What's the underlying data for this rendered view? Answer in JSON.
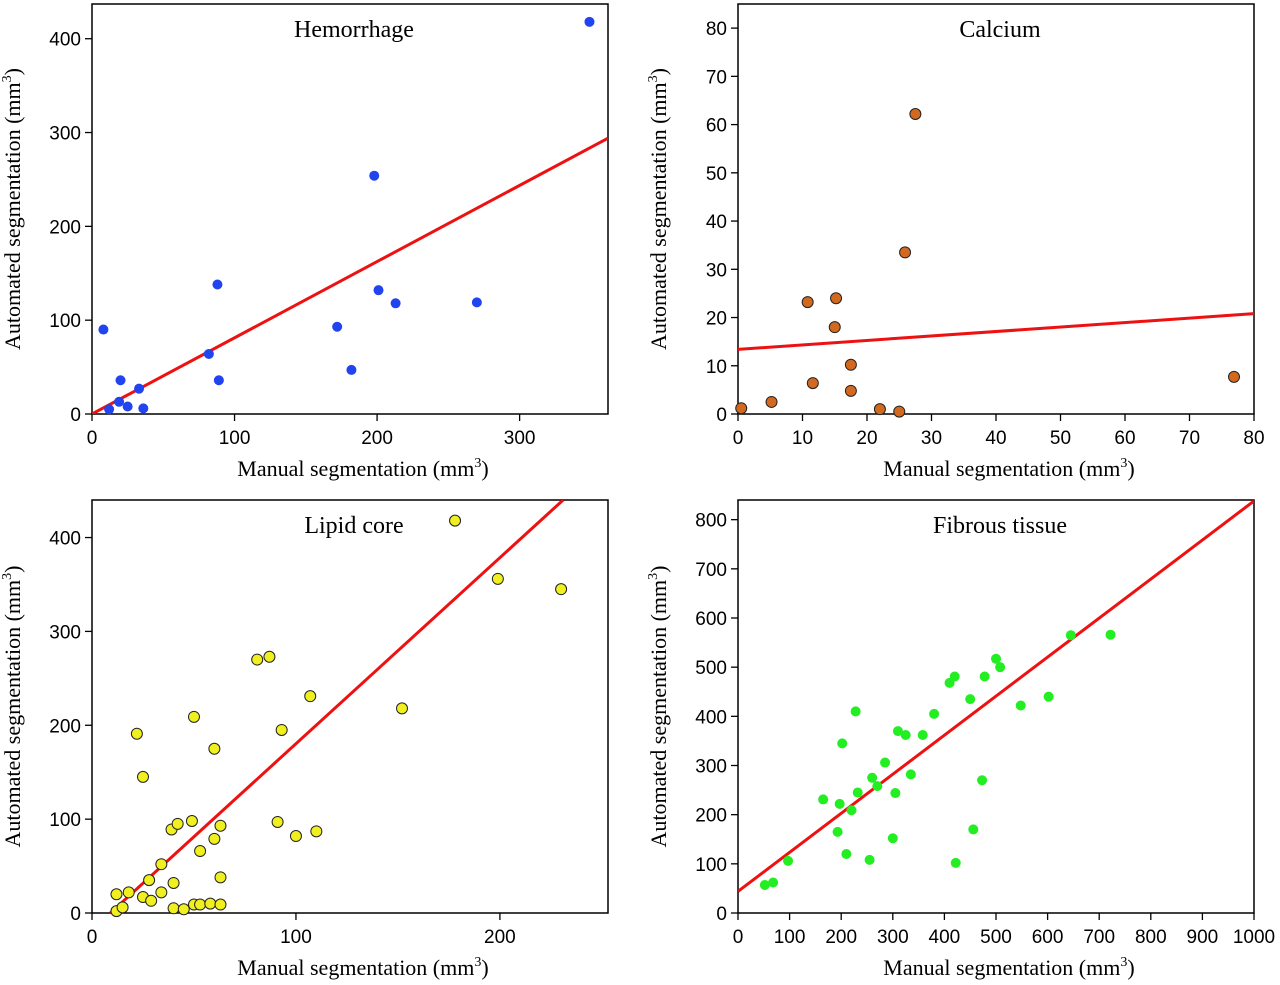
{
  "chart_data": [
    {
      "type": "scatter",
      "title": "Hemorrhage",
      "xlabel": "Manual segmentation (mm",
      "ylabel": "Automated segmentation (mm",
      "unit_superscript": "3",
      "unit_close": ")",
      "xlim": [
        0,
        362
      ],
      "ylim": [
        0,
        437
      ],
      "xticks": [
        0,
        100,
        200,
        300
      ],
      "yticks": [
        0,
        100,
        200,
        300,
        400
      ],
      "point_color": "#2244ee",
      "point_outline": false,
      "fit_line": {
        "color": "#ee1111",
        "x": [
          0,
          362
        ],
        "y": [
          0,
          294
        ]
      },
      "points": [
        {
          "x": 8,
          "y": 90
        },
        {
          "x": 12,
          "y": 5
        },
        {
          "x": 19,
          "y": 13
        },
        {
          "x": 20,
          "y": 36
        },
        {
          "x": 25,
          "y": 8
        },
        {
          "x": 33,
          "y": 27
        },
        {
          "x": 36,
          "y": 6
        },
        {
          "x": 82,
          "y": 64
        },
        {
          "x": 88,
          "y": 138
        },
        {
          "x": 89,
          "y": 36
        },
        {
          "x": 172,
          "y": 93
        },
        {
          "x": 182,
          "y": 47
        },
        {
          "x": 198,
          "y": 254
        },
        {
          "x": 201,
          "y": 132
        },
        {
          "x": 213,
          "y": 118
        },
        {
          "x": 270,
          "y": 119
        },
        {
          "x": 349,
          "y": 418
        }
      ]
    },
    {
      "type": "scatter",
      "title": "Calcium",
      "xlabel": "Manual segmentation (mm",
      "ylabel": "Automated segmentation (mm",
      "unit_superscript": "3",
      "unit_close": ")",
      "xlim": [
        0,
        80
      ],
      "ylim": [
        0,
        85
      ],
      "xticks": [
        0,
        10,
        20,
        30,
        40,
        50,
        60,
        70,
        80
      ],
      "yticks": [
        0,
        10,
        20,
        30,
        40,
        50,
        60,
        70,
        80
      ],
      "point_color": "#d2691e",
      "point_outline": true,
      "fit_line": {
        "color": "#ee1111",
        "x": [
          0,
          80
        ],
        "y": [
          13.4,
          20.8
        ]
      },
      "points": [
        {
          "x": 0.5,
          "y": 1.2
        },
        {
          "x": 5.2,
          "y": 2.5
        },
        {
          "x": 10.8,
          "y": 23.2
        },
        {
          "x": 11.6,
          "y": 6.4
        },
        {
          "x": 15,
          "y": 18
        },
        {
          "x": 15.2,
          "y": 24
        },
        {
          "x": 17.5,
          "y": 10.2
        },
        {
          "x": 17.5,
          "y": 4.8
        },
        {
          "x": 22,
          "y": 1
        },
        {
          "x": 25,
          "y": 0.5
        },
        {
          "x": 25.9,
          "y": 33.5
        },
        {
          "x": 27.5,
          "y": 62.2
        },
        {
          "x": 76.9,
          "y": 7.7
        }
      ]
    },
    {
      "type": "scatter",
      "title": "Lipid core",
      "xlabel": "Manual segmentation (mm",
      "ylabel": "Automated segmentation (mm",
      "unit_superscript": "3",
      "unit_close": ")",
      "xlim": [
        0,
        253
      ],
      "ylim": [
        0,
        440
      ],
      "xticks": [
        0,
        100,
        200
      ],
      "yticks": [
        0,
        100,
        200,
        300,
        400
      ],
      "point_color": "#f0f020",
      "point_outline": true,
      "fit_line": {
        "color": "#ee1111",
        "x": [
          9,
          231
        ],
        "y": [
          0,
          440
        ]
      },
      "points": [
        {
          "x": 12,
          "y": 20
        },
        {
          "x": 12,
          "y": 2
        },
        {
          "x": 15,
          "y": 6
        },
        {
          "x": 18,
          "y": 22
        },
        {
          "x": 22,
          "y": 191
        },
        {
          "x": 25,
          "y": 145
        },
        {
          "x": 25,
          "y": 17
        },
        {
          "x": 28,
          "y": 35
        },
        {
          "x": 29,
          "y": 13
        },
        {
          "x": 34,
          "y": 52
        },
        {
          "x": 34,
          "y": 22
        },
        {
          "x": 39,
          "y": 89
        },
        {
          "x": 40,
          "y": 32
        },
        {
          "x": 40,
          "y": 5
        },
        {
          "x": 42,
          "y": 95
        },
        {
          "x": 45,
          "y": 4
        },
        {
          "x": 49,
          "y": 98
        },
        {
          "x": 50,
          "y": 209
        },
        {
          "x": 50,
          "y": 9
        },
        {
          "x": 53,
          "y": 66
        },
        {
          "x": 53,
          "y": 9
        },
        {
          "x": 58,
          "y": 10
        },
        {
          "x": 60,
          "y": 175
        },
        {
          "x": 60,
          "y": 79
        },
        {
          "x": 63,
          "y": 93
        },
        {
          "x": 63,
          "y": 38
        },
        {
          "x": 63,
          "y": 9
        },
        {
          "x": 81,
          "y": 270
        },
        {
          "x": 87,
          "y": 273
        },
        {
          "x": 91,
          "y": 97
        },
        {
          "x": 93,
          "y": 195
        },
        {
          "x": 100,
          "y": 82
        },
        {
          "x": 107,
          "y": 231
        },
        {
          "x": 110,
          "y": 87
        },
        {
          "x": 152,
          "y": 218
        },
        {
          "x": 178,
          "y": 418
        },
        {
          "x": 199,
          "y": 356
        },
        {
          "x": 230,
          "y": 345
        }
      ]
    },
    {
      "type": "scatter",
      "title": "Fibrous tissue",
      "xlabel": "Manual segmentation (mm",
      "ylabel": "Automated segmentation (mm",
      "unit_superscript": "3",
      "unit_close": ")",
      "xlim": [
        0,
        1000
      ],
      "ylim": [
        0,
        840
      ],
      "xticks": [
        0,
        100,
        200,
        300,
        400,
        500,
        600,
        700,
        800,
        900,
        1000
      ],
      "yticks": [
        0,
        100,
        200,
        300,
        400,
        500,
        600,
        700,
        800
      ],
      "point_color": "#22ee22",
      "point_outline": false,
      "fit_line": {
        "color": "#ee1111",
        "x": [
          0,
          1000
        ],
        "y": [
          44,
          838
        ]
      },
      "points": [
        {
          "x": 52,
          "y": 57
        },
        {
          "x": 68,
          "y": 62
        },
        {
          "x": 97,
          "y": 106
        },
        {
          "x": 165,
          "y": 231
        },
        {
          "x": 193,
          "y": 165
        },
        {
          "x": 197,
          "y": 222
        },
        {
          "x": 202,
          "y": 345
        },
        {
          "x": 210,
          "y": 120
        },
        {
          "x": 220,
          "y": 209
        },
        {
          "x": 228,
          "y": 410
        },
        {
          "x": 232,
          "y": 245
        },
        {
          "x": 255,
          "y": 108
        },
        {
          "x": 260,
          "y": 275
        },
        {
          "x": 270,
          "y": 258
        },
        {
          "x": 285,
          "y": 306
        },
        {
          "x": 300,
          "y": 152
        },
        {
          "x": 305,
          "y": 244
        },
        {
          "x": 310,
          "y": 370
        },
        {
          "x": 325,
          "y": 362
        },
        {
          "x": 335,
          "y": 282
        },
        {
          "x": 358,
          "y": 362
        },
        {
          "x": 380,
          "y": 405
        },
        {
          "x": 410,
          "y": 468
        },
        {
          "x": 420,
          "y": 481
        },
        {
          "x": 422,
          "y": 102
        },
        {
          "x": 450,
          "y": 435
        },
        {
          "x": 456,
          "y": 170
        },
        {
          "x": 473,
          "y": 270
        },
        {
          "x": 478,
          "y": 481
        },
        {
          "x": 500,
          "y": 517
        },
        {
          "x": 508,
          "y": 500
        },
        {
          "x": 548,
          "y": 422
        },
        {
          "x": 602,
          "y": 440
        },
        {
          "x": 645,
          "y": 565
        },
        {
          "x": 722,
          "y": 566
        }
      ]
    }
  ]
}
